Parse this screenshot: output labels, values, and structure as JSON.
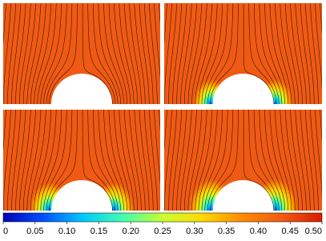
{
  "chart_data": {
    "type": "field",
    "colormap": [
      "#0000b4",
      "#0050ff",
      "#00c8ff",
      "#40ffb0",
      "#c8ff30",
      "#ffd800",
      "#ff8a00",
      "#ef5a14",
      "#d81e00"
    ],
    "field_color": "#f05a14",
    "colorbar": {
      "lim": [
        0,
        0.5
      ],
      "ticks": [
        0,
        0.05,
        {
          "value": 0.1,
          "label": "0.10"
        },
        0.15,
        {
          "value": 0.2,
          "label": "0.20"
        },
        0.25,
        {
          "value": 0.3,
          "label": "0.30"
        },
        0.35,
        {
          "value": 0.4,
          "label": "0.40"
        },
        0.45,
        {
          "value": 0.5,
          "label": "0.50"
        }
      ]
    }
  }
}
